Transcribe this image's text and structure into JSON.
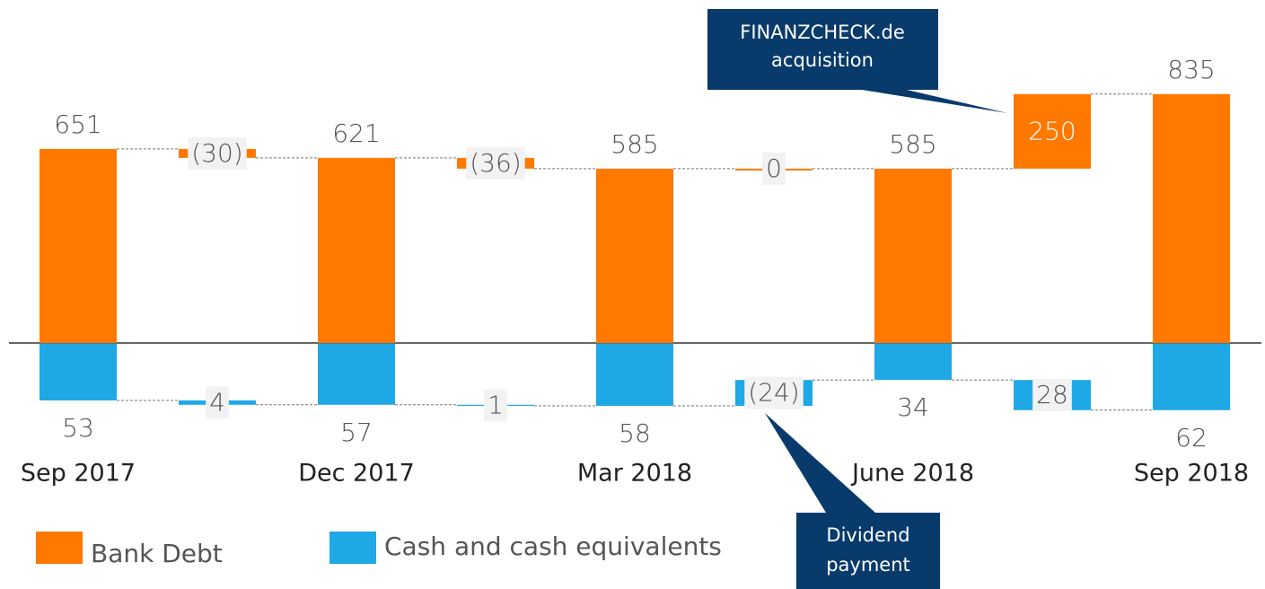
{
  "chart_data": {
    "type": "waterfall",
    "categories": [
      "Sep 2017",
      null,
      "Dec 2017",
      null,
      "Mar 2018",
      null,
      "June 2018",
      null,
      "Sep 2018"
    ],
    "totals": [
      true,
      false,
      true,
      false,
      true,
      false,
      true,
      false,
      true
    ],
    "series": [
      {
        "name": "Bank Debt",
        "color": "#ff7800",
        "values": [
          651,
          -30,
          621,
          -36,
          585,
          0,
          585,
          250,
          835
        ],
        "value_labels": [
          "651",
          "(30)",
          "621",
          "(36)",
          "585",
          "0",
          "585",
          "250",
          "835"
        ]
      },
      {
        "name": "Cash and cash equivalents",
        "color": "#1fa8e6",
        "axis": "y2",
        "values": [
          53,
          4,
          57,
          1,
          58,
          -24,
          34,
          28,
          62
        ],
        "value_labels": [
          "53",
          "4",
          "57",
          "1",
          "58",
          "(24)",
          "34",
          "28",
          "62"
        ]
      }
    ],
    "ylim": [
      -355,
      1000
    ],
    "y2lim": [
      -277,
      98
    ],
    "y2_reversed": true,
    "annotations": [
      {
        "lines": [
          "FINANZCHECK.de",
          "acquisition"
        ]
      },
      {
        "lines": [
          "Dividend",
          "payment"
        ]
      }
    ]
  }
}
